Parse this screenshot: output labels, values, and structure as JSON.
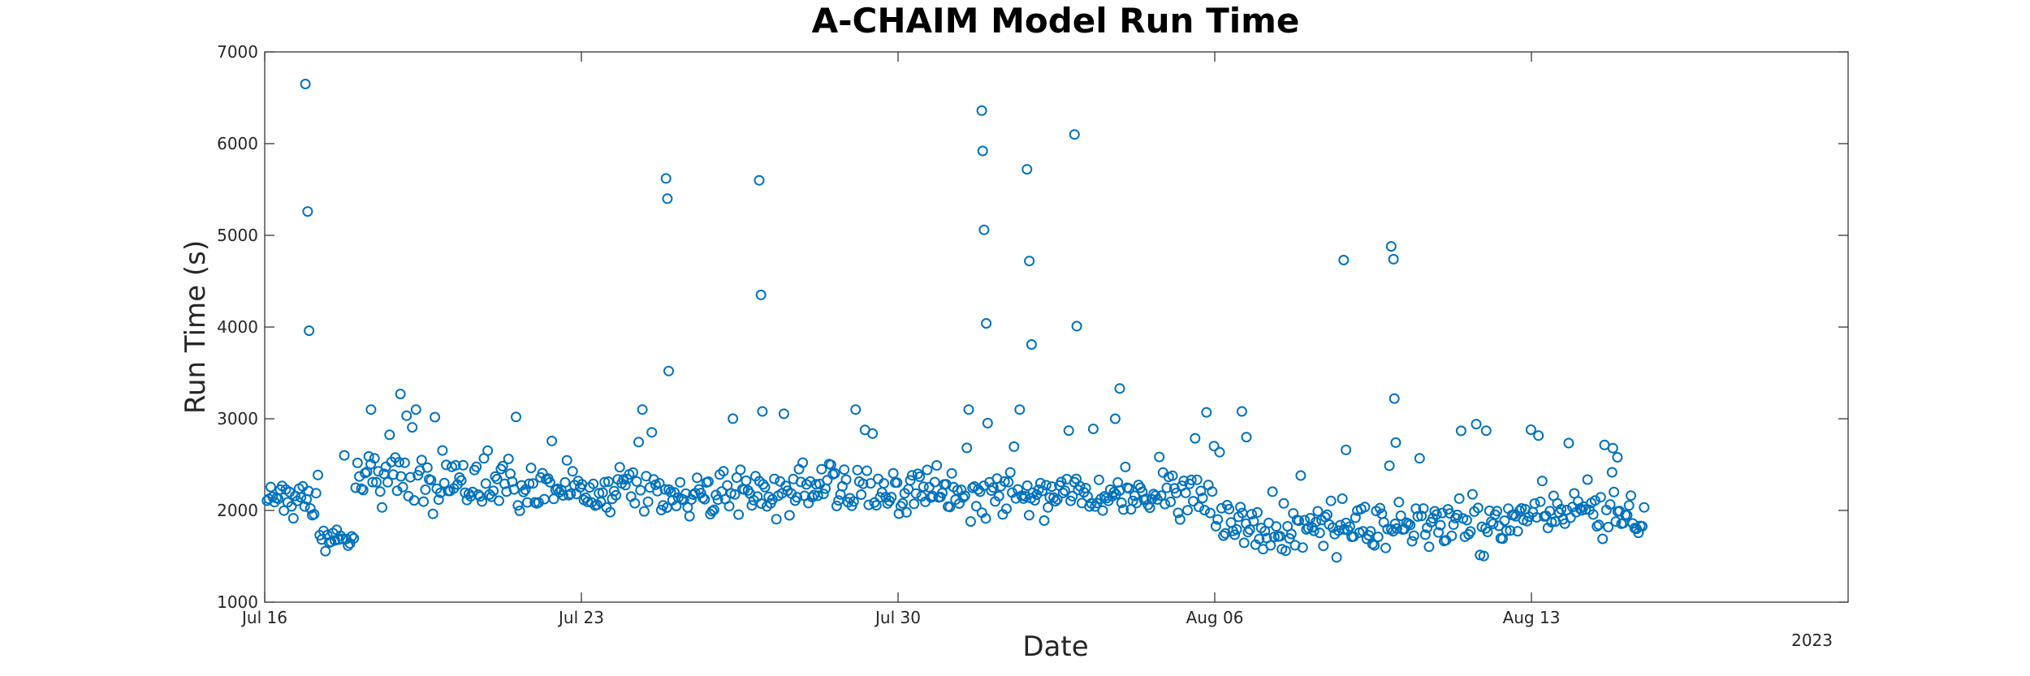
{
  "chart_data": {
    "type": "scatter",
    "title": "A-CHAIM Model Run Time",
    "xlabel": "Date",
    "ylabel": "Run Time (s)",
    "year_label": "2023",
    "color": "#0072BD",
    "marker": "open-circle",
    "grid": false,
    "xlim_days": [
      0,
      35
    ],
    "ylim": [
      1000,
      7000
    ],
    "x_unit": "days since Jul 16 2023",
    "xticks": [
      {
        "value": 0,
        "label": "Jul 16"
      },
      {
        "value": 7,
        "label": "Jul 23"
      },
      {
        "value": 14,
        "label": "Jul 30"
      },
      {
        "value": 21,
        "label": "Aug 06"
      },
      {
        "value": 28,
        "label": "Aug 13"
      }
    ],
    "yticks": [
      {
        "value": 1000,
        "label": "1000"
      },
      {
        "value": 2000,
        "label": "2000"
      },
      {
        "value": 3000,
        "label": "3000"
      },
      {
        "value": 4000,
        "label": "4000"
      },
      {
        "value": 5000,
        "label": "5000"
      },
      {
        "value": 6000,
        "label": "6000"
      },
      {
        "value": 7000,
        "label": "7000"
      }
    ],
    "outliers": [
      [
        0.9,
        6650
      ],
      [
        0.95,
        5260
      ],
      [
        0.98,
        3960
      ],
      [
        8.87,
        5620
      ],
      [
        8.9,
        5400
      ],
      [
        8.93,
        3520
      ],
      [
        10.93,
        5600
      ],
      [
        10.97,
        4350
      ],
      [
        11.0,
        3080
      ],
      [
        15.85,
        6360
      ],
      [
        15.87,
        5920
      ],
      [
        15.9,
        5060
      ],
      [
        15.95,
        4040
      ],
      [
        16.85,
        5720
      ],
      [
        16.9,
        4720
      ],
      [
        16.95,
        3810
      ],
      [
        17.9,
        6100
      ],
      [
        17.95,
        4010
      ],
      [
        21.6,
        3080
      ],
      [
        21.7,
        2800
      ],
      [
        23.85,
        4730
      ],
      [
        23.9,
        2660
      ],
      [
        24.9,
        4880
      ],
      [
        24.95,
        4740
      ],
      [
        24.97,
        3220
      ],
      [
        25.0,
        2740
      ],
      [
        18.9,
        3330
      ],
      [
        18.8,
        3000
      ],
      [
        3.0,
        3270
      ],
      [
        2.35,
        3100
      ],
      [
        27.0,
        2870
      ],
      [
        29.8,
        2680
      ],
      [
        29.9,
        2580
      ]
    ],
    "baseline_profile": [
      {
        "start": 0.0,
        "end": 1.2,
        "mean": 2150,
        "spread": 260
      },
      {
        "start": 1.2,
        "end": 2.0,
        "mean": 1700,
        "spread": 150
      },
      {
        "start": 2.0,
        "end": 4.5,
        "mean": 2300,
        "spread": 320
      },
      {
        "start": 4.5,
        "end": 7.0,
        "mean": 2250,
        "spread": 340
      },
      {
        "start": 7.0,
        "end": 10.5,
        "mean": 2150,
        "spread": 330
      },
      {
        "start": 10.5,
        "end": 14.0,
        "mean": 2200,
        "spread": 330
      },
      {
        "start": 14.0,
        "end": 21.0,
        "mean": 2200,
        "spread": 320
      },
      {
        "start": 21.0,
        "end": 27.0,
        "mean": 1850,
        "spread": 350
      },
      {
        "start": 27.0,
        "end": 30.5,
        "mean": 1950,
        "spread": 300
      }
    ],
    "sampling_interval_days": 0.0417,
    "data_end_day": 30.5
  }
}
